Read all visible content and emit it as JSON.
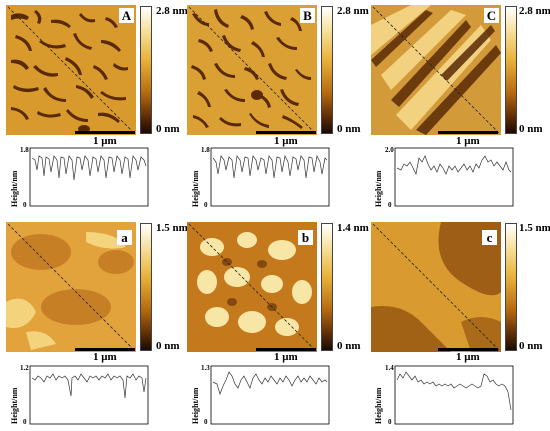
{
  "panels": [
    {
      "letter": "A",
      "scale": "1 μm",
      "cbar_max": "2.8 nm",
      "cbar_min": "0 nm",
      "prof_top": "1.8",
      "prof_zero": "0",
      "ylabel": "Height/nm"
    },
    {
      "letter": "B",
      "scale": "1 μm",
      "cbar_max": "2.8 nm",
      "cbar_min": "0 nm",
      "prof_top": "1.8",
      "prof_zero": "0",
      "ylabel": "Height/nm"
    },
    {
      "letter": "C",
      "scale": "1 μm",
      "cbar_max": "2.8 nm",
      "cbar_min": "0 nm",
      "prof_top": "2.0",
      "prof_zero": "0",
      "ylabel": "Height/nm"
    },
    {
      "letter": "a",
      "scale": "1 μm",
      "cbar_max": "1.5 nm",
      "cbar_min": "0 nm",
      "prof_top": "1.2",
      "prof_zero": "0",
      "ylabel": "Height/nm"
    },
    {
      "letter": "b",
      "scale": "1 μm",
      "cbar_max": "1.4 nm",
      "cbar_min": "0 nm",
      "prof_top": "1.3",
      "prof_zero": "0",
      "ylabel": "Height/nm"
    },
    {
      "letter": "c",
      "scale": "1 μm",
      "cbar_max": "1.5 nm",
      "cbar_min": "0 nm",
      "prof_top": "1.4",
      "prof_zero": "0",
      "ylabel": "Height/nm"
    }
  ],
  "colors": {
    "dark": "#4a2204",
    "mid": "#c98a22",
    "light": "#f4cf6a",
    "hi": "#fbe9a8"
  }
}
